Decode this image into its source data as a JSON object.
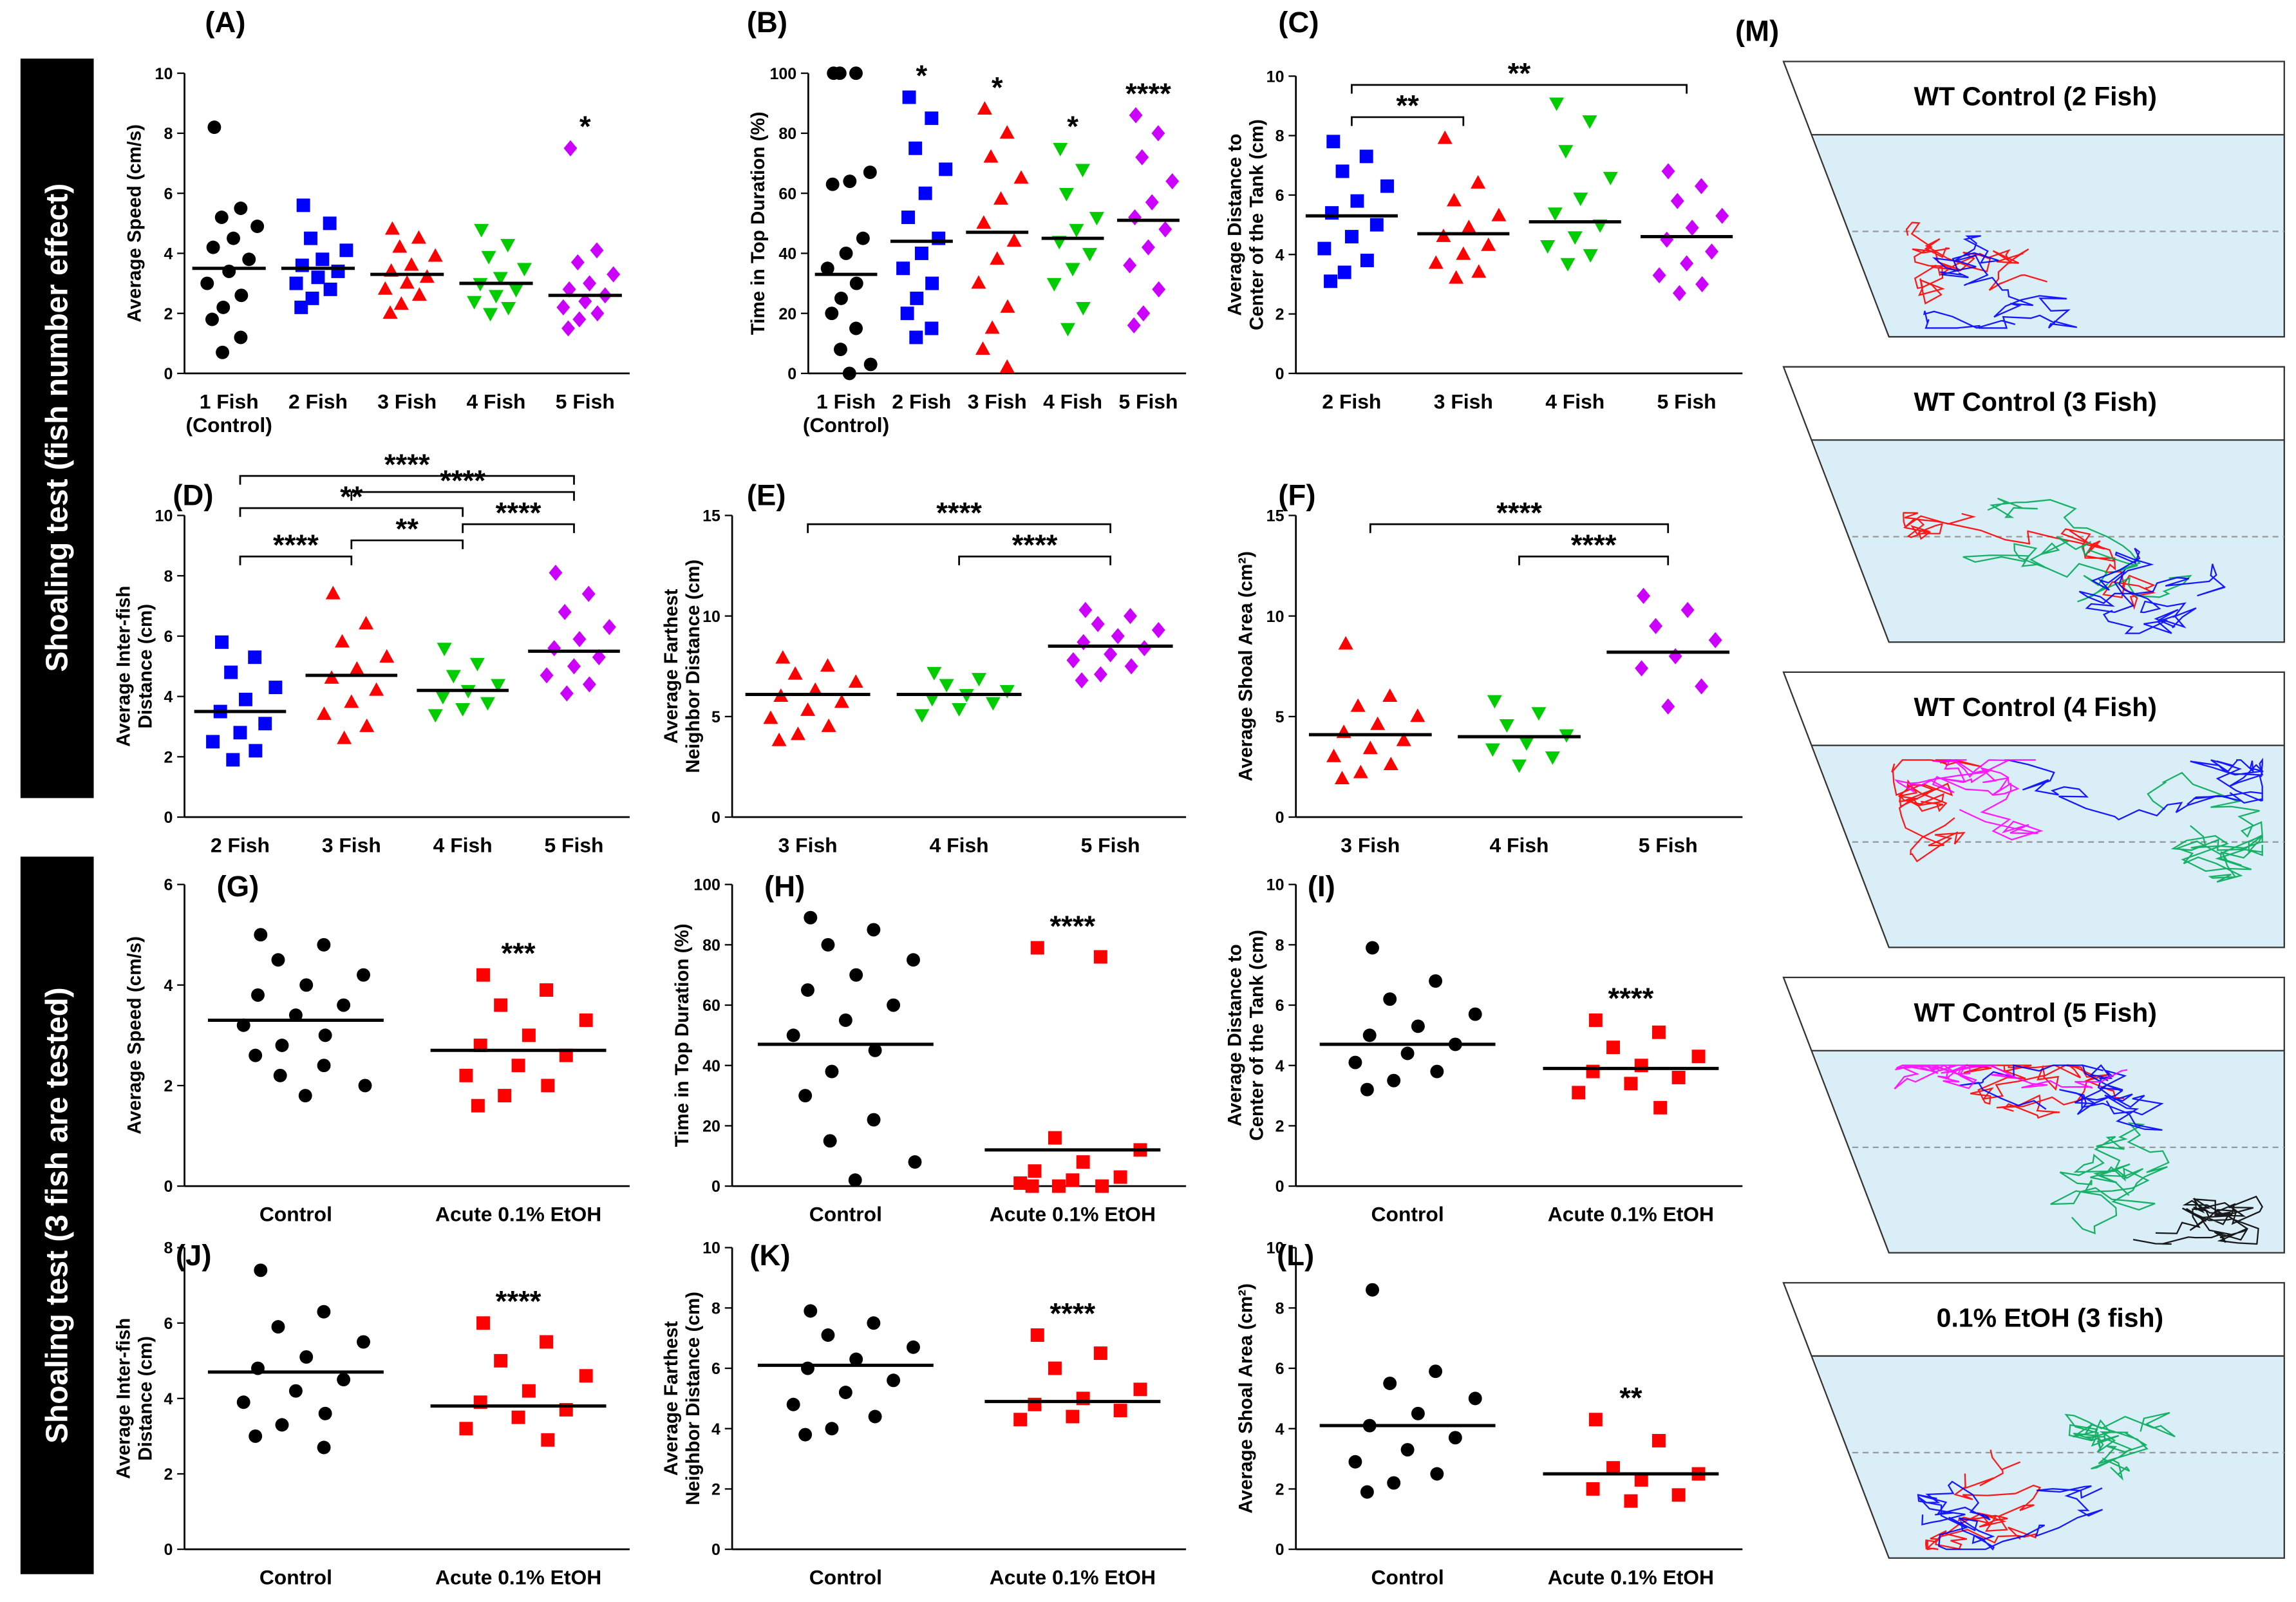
{
  "chart_data": [
    {
      "type": "dotplot",
      "title": "(A)",
      "ylabel": "Average Speed (cm/s)",
      "categories": [
        "1 Fish\n(Control)",
        "2 Fish",
        "3 Fish",
        "4 Fish",
        "5 Fish"
      ],
      "ylim": [
        0,
        10
      ],
      "yticks": [
        0,
        2,
        4,
        6,
        8,
        10
      ],
      "groups": [
        {
          "color": "#000000",
          "marker": "circle",
          "mean": 3.5,
          "values": [
            8.2,
            5.5,
            5.2,
            4.9,
            4.5,
            4.2,
            3.8,
            3.4,
            3.0,
            2.6,
            2.2,
            1.8,
            1.2,
            0.7
          ]
        },
        {
          "color": "#0000ff",
          "marker": "square",
          "mean": 3.5,
          "values": [
            5.6,
            5.0,
            4.5,
            4.1,
            3.8,
            3.6,
            3.4,
            3.2,
            3.0,
            2.8,
            2.5,
            2.2
          ]
        },
        {
          "color": "#ff0000",
          "marker": "triangle",
          "mean": 3.3,
          "values": [
            4.8,
            4.5,
            4.2,
            3.9,
            3.6,
            3.4,
            3.2,
            3.0,
            2.8,
            2.6,
            2.3,
            2.0
          ]
        },
        {
          "color": "#00cc00",
          "marker": "triangle-down",
          "mean": 3.0,
          "values": [
            4.8,
            4.3,
            3.9,
            3.5,
            3.2,
            3.0,
            2.8,
            2.6,
            2.4,
            2.2,
            2.0
          ]
        },
        {
          "color": "#cc00ff",
          "marker": "diamond",
          "mean": 2.6,
          "significance": "*",
          "values": [
            7.5,
            4.1,
            3.7,
            3.3,
            3.0,
            2.8,
            2.6,
            2.4,
            2.2,
            2.0,
            1.8,
            1.5
          ]
        }
      ]
    },
    {
      "type": "dotplot",
      "title": "(B)",
      "ylabel": "Time in Top Duration (%)",
      "categories": [
        "1 Fish\n(Control)",
        "2 Fish",
        "3 Fish",
        "4 Fish",
        "5 Fish"
      ],
      "ylim": [
        0,
        100
      ],
      "yticks": [
        0,
        20,
        40,
        60,
        80,
        100
      ],
      "groups": [
        {
          "color": "#000000",
          "marker": "circle",
          "mean": 33,
          "values": [
            100,
            100,
            100,
            67,
            64,
            63,
            45,
            40,
            35,
            30,
            25,
            20,
            15,
            8,
            3,
            0
          ]
        },
        {
          "color": "#0000ff",
          "marker": "square",
          "mean": 44,
          "significance": "*",
          "values": [
            92,
            85,
            75,
            68,
            60,
            52,
            45,
            40,
            35,
            30,
            25,
            20,
            15,
            12
          ]
        },
        {
          "color": "#ff0000",
          "marker": "triangle",
          "mean": 47,
          "significance": "*",
          "values": [
            88,
            80,
            72,
            65,
            58,
            50,
            44,
            38,
            30,
            22,
            15,
            8,
            2
          ]
        },
        {
          "color": "#00cc00",
          "marker": "triangle-down",
          "mean": 45,
          "significance": "*",
          "values": [
            75,
            68,
            60,
            52,
            48,
            44,
            40,
            35,
            30,
            22,
            15
          ]
        },
        {
          "color": "#cc00ff",
          "marker": "diamond",
          "mean": 51,
          "significance": "****",
          "values": [
            86,
            80,
            72,
            64,
            57,
            52,
            48,
            42,
            36,
            28,
            20,
            16
          ]
        }
      ]
    },
    {
      "type": "dotplot",
      "title": "(C)",
      "ylabel": "Average Distance to\nCenter of the Tank (cm)",
      "categories": [
        "2 Fish",
        "3 Fish",
        "4 Fish",
        "5 Fish"
      ],
      "ylim": [
        0,
        10
      ],
      "yticks": [
        0,
        2,
        4,
        6,
        8,
        10
      ],
      "groups": [
        {
          "color": "#0000ff",
          "marker": "square",
          "mean": 5.3,
          "values": [
            7.8,
            7.3,
            6.8,
            6.3,
            5.8,
            5.4,
            5.0,
            4.6,
            4.2,
            3.8,
            3.4,
            3.1
          ]
        },
        {
          "color": "#ff0000",
          "marker": "triangle",
          "mean": 4.7,
          "values": [
            7.9,
            6.4,
            5.8,
            5.3,
            4.9,
            4.6,
            4.3,
            4.0,
            3.7,
            3.4,
            3.2
          ]
        },
        {
          "color": "#00cc00",
          "marker": "triangle-down",
          "mean": 5.1,
          "values": [
            9.1,
            8.5,
            7.5,
            6.6,
            5.9,
            5.4,
            5.0,
            4.6,
            4.3,
            4.0,
            3.7
          ]
        },
        {
          "color": "#cc00ff",
          "marker": "diamond",
          "mean": 4.6,
          "values": [
            6.8,
            6.3,
            5.8,
            5.3,
            4.9,
            4.5,
            4.1,
            3.7,
            3.3,
            3.0,
            2.7
          ]
        }
      ],
      "brackets": [
        {
          "from": "2 Fish",
          "to": "3 Fish",
          "text": "**"
        },
        {
          "from": "2 Fish",
          "to": "5 Fish",
          "text": "**"
        }
      ]
    },
    {
      "type": "dotplot",
      "title": "(D)",
      "ylabel": "Average Inter-fish\nDistance (cm)",
      "categories": [
        "2 Fish",
        "3 Fish",
        "4 Fish",
        "5 Fish"
      ],
      "ylim": [
        0,
        10
      ],
      "yticks": [
        0,
        2,
        4,
        6,
        8,
        10
      ],
      "groups": [
        {
          "color": "#0000ff",
          "marker": "square",
          "mean": 3.5,
          "values": [
            5.8,
            5.3,
            4.8,
            4.3,
            3.9,
            3.5,
            3.1,
            2.8,
            2.5,
            2.2,
            1.9
          ]
        },
        {
          "color": "#ff0000",
          "marker": "triangle",
          "mean": 4.7,
          "values": [
            7.4,
            6.4,
            5.8,
            5.3,
            4.9,
            4.6,
            4.2,
            3.8,
            3.4,
            3.0,
            2.6
          ]
        },
        {
          "color": "#00cc00",
          "marker": "triangle-down",
          "mean": 4.2,
          "values": [
            5.6,
            5.1,
            4.7,
            4.4,
            4.2,
            4.0,
            3.8,
            3.6,
            3.4
          ]
        },
        {
          "color": "#cc00ff",
          "marker": "diamond",
          "mean": 5.5,
          "values": [
            8.1,
            7.4,
            6.8,
            6.3,
            5.9,
            5.6,
            5.3,
            5.0,
            4.7,
            4.4,
            4.1
          ]
        }
      ],
      "brackets": [
        {
          "from": "2 Fish",
          "to": "3 Fish",
          "text": "****"
        },
        {
          "from": "3 Fish",
          "to": "4 Fish",
          "text": "**"
        },
        {
          "from": "4 Fish",
          "to": "5 Fish",
          "text": "****"
        },
        {
          "from": "2 Fish",
          "to": "4 Fish",
          "text": "**"
        },
        {
          "from": "3 Fish",
          "to": "5 Fish",
          "text": "****"
        },
        {
          "from": "2 Fish",
          "to": "5 Fish",
          "text": "****"
        }
      ]
    },
    {
      "type": "dotplot",
      "title": "(E)",
      "ylabel": "Average Farthest\nNeighbor Distance (cm)",
      "categories": [
        "3 Fish",
        "4 Fish",
        "5 Fish"
      ],
      "ylim": [
        0,
        15
      ],
      "yticks": [
        0,
        5,
        10,
        15
      ],
      "groups": [
        {
          "color": "#ff0000",
          "marker": "triangle",
          "mean": 6.1,
          "values": [
            7.9,
            7.5,
            7.1,
            6.7,
            6.3,
            6.0,
            5.7,
            5.3,
            4.9,
            4.5,
            4.1,
            3.8
          ]
        },
        {
          "color": "#00cc00",
          "marker": "triangle-down",
          "mean": 6.1,
          "values": [
            7.2,
            6.9,
            6.6,
            6.3,
            6.1,
            5.9,
            5.7,
            5.4,
            5.1
          ]
        },
        {
          "color": "#cc00ff",
          "marker": "diamond",
          "mean": 8.5,
          "values": [
            10.3,
            10.0,
            9.6,
            9.3,
            9.0,
            8.7,
            8.4,
            8.1,
            7.8,
            7.5,
            7.1,
            6.8
          ]
        }
      ],
      "brackets": [
        {
          "from": "4 Fish",
          "to": "5 Fish",
          "text": "****"
        },
        {
          "from": "3 Fish",
          "to": "5 Fish",
          "text": "****"
        }
      ]
    },
    {
      "type": "dotplot",
      "title": "(F)",
      "ylabel": "Average Shoal Area (cm²)",
      "categories": [
        "3 Fish",
        "4 Fish",
        "5 Fish"
      ],
      "ylim": [
        0,
        15
      ],
      "yticks": [
        0,
        5,
        10,
        15
      ],
      "groups": [
        {
          "color": "#ff0000",
          "marker": "triangle",
          "mean": 4.1,
          "values": [
            8.6,
            6.0,
            5.5,
            5.0,
            4.6,
            4.2,
            3.8,
            3.4,
            3.0,
            2.6,
            2.2,
            1.9
          ]
        },
        {
          "color": "#00cc00",
          "marker": "triangle-down",
          "mean": 4.0,
          "values": [
            5.8,
            5.2,
            4.6,
            4.1,
            3.7,
            3.4,
            3.0,
            2.6
          ]
        },
        {
          "color": "#cc00ff",
          "marker": "diamond",
          "mean": 8.2,
          "values": [
            11.0,
            10.3,
            9.5,
            8.8,
            8.0,
            7.4,
            6.5,
            5.5
          ]
        }
      ],
      "brackets": [
        {
          "from": "4 Fish",
          "to": "5 Fish",
          "text": "****"
        },
        {
          "from": "3 Fish",
          "to": "5 Fish",
          "text": "****"
        }
      ]
    },
    {
      "type": "dotplot",
      "title": "(G)",
      "ylabel": "Average Speed (cm/s)",
      "categories": [
        "Control",
        "Acute 0.1% EtOH"
      ],
      "ylim": [
        0,
        6
      ],
      "yticks": [
        0,
        2,
        4,
        6
      ],
      "groups": [
        {
          "color": "#000000",
          "marker": "circle",
          "mean": 3.3,
          "values": [
            5.0,
            4.8,
            4.5,
            4.2,
            4.0,
            3.8,
            3.6,
            3.4,
            3.2,
            3.0,
            2.8,
            2.6,
            2.4,
            2.2,
            2.0,
            1.8
          ]
        },
        {
          "color": "#ff0000",
          "marker": "square",
          "mean": 2.7,
          "significance": "***",
          "values": [
            4.2,
            3.9,
            3.6,
            3.3,
            3.0,
            2.8,
            2.6,
            2.4,
            2.2,
            2.0,
            1.8,
            1.6
          ]
        }
      ]
    },
    {
      "type": "dotplot",
      "title": "(H)",
      "ylabel": "Time in Top Duration (%)",
      "categories": [
        "Control",
        "Acute 0.1% EtOH"
      ],
      "ylim": [
        0,
        100
      ],
      "yticks": [
        0,
        20,
        40,
        60,
        80,
        100
      ],
      "groups": [
        {
          "color": "#000000",
          "marker": "circle",
          "mean": 47,
          "values": [
            89,
            85,
            80,
            75,
            70,
            65,
            60,
            55,
            50,
            45,
            38,
            30,
            22,
            15,
            8,
            2
          ]
        },
        {
          "color": "#ff0000",
          "marker": "square",
          "mean": 12,
          "significance": "****",
          "values": [
            79,
            76,
            16,
            12,
            8,
            5,
            3,
            2,
            1,
            0,
            0,
            0
          ]
        }
      ]
    },
    {
      "type": "dotplot",
      "title": "(I)",
      "ylabel": "Average Distance to\nCenter of the Tank (cm)",
      "categories": [
        "Control",
        "Acute 0.1% EtOH"
      ],
      "ylim": [
        0,
        10
      ],
      "yticks": [
        0,
        2,
        4,
        6,
        8,
        10
      ],
      "groups": [
        {
          "color": "#000000",
          "marker": "circle",
          "mean": 4.7,
          "values": [
            7.9,
            6.8,
            6.2,
            5.7,
            5.3,
            5.0,
            4.7,
            4.4,
            4.1,
            3.8,
            3.5,
            3.2
          ]
        },
        {
          "color": "#ff0000",
          "marker": "square",
          "mean": 3.9,
          "significance": "****",
          "values": [
            5.5,
            5.1,
            4.6,
            4.3,
            4.0,
            3.8,
            3.6,
            3.4,
            3.1,
            2.6
          ]
        }
      ]
    },
    {
      "type": "dotplot",
      "title": "(J)",
      "ylabel": "Average Inter-fish\nDistance (cm)",
      "categories": [
        "Control",
        "Acute 0.1% EtOH"
      ],
      "ylim": [
        0,
        8
      ],
      "yticks": [
        0,
        2,
        4,
        6,
        8
      ],
      "groups": [
        {
          "color": "#000000",
          "marker": "circle",
          "mean": 4.7,
          "values": [
            7.4,
            6.3,
            5.9,
            5.5,
            5.1,
            4.8,
            4.5,
            4.2,
            3.9,
            3.6,
            3.3,
            3.0,
            2.7
          ]
        },
        {
          "color": "#ff0000",
          "marker": "square",
          "mean": 3.8,
          "significance": "****",
          "values": [
            6.0,
            5.5,
            5.0,
            4.6,
            4.2,
            3.9,
            3.7,
            3.5,
            3.2,
            2.9
          ]
        }
      ]
    },
    {
      "type": "dotplot",
      "title": "(K)",
      "ylabel": "Average Farthest\nNeighbor Distance (cm)",
      "categories": [
        "Control",
        "Acute 0.1% EtOH"
      ],
      "ylim": [
        0,
        10
      ],
      "yticks": [
        0,
        2,
        4,
        6,
        8,
        10
      ],
      "groups": [
        {
          "color": "#000000",
          "marker": "circle",
          "mean": 6.1,
          "values": [
            7.9,
            7.5,
            7.1,
            6.7,
            6.3,
            6.0,
            5.6,
            5.2,
            4.8,
            4.4,
            4.0,
            3.8
          ]
        },
        {
          "color": "#ff0000",
          "marker": "square",
          "mean": 4.9,
          "significance": "****",
          "values": [
            7.1,
            6.5,
            6.0,
            5.3,
            5.0,
            4.8,
            4.6,
            4.4,
            4.3
          ]
        }
      ]
    },
    {
      "type": "dotplot",
      "title": "(L)",
      "ylabel": "Average Shoal Area (cm²)",
      "categories": [
        "Control",
        "Acute 0.1% EtOH"
      ],
      "ylim": [
        0,
        10
      ],
      "yticks": [
        0,
        2,
        4,
        6,
        8,
        10
      ],
      "groups": [
        {
          "color": "#000000",
          "marker": "circle",
          "mean": 4.1,
          "values": [
            8.6,
            5.9,
            5.5,
            5.0,
            4.5,
            4.1,
            3.7,
            3.3,
            2.9,
            2.5,
            2.2,
            1.9
          ]
        },
        {
          "color": "#ff0000",
          "marker": "square",
          "mean": 2.5,
          "significance": "**",
          "values": [
            4.3,
            3.6,
            2.7,
            2.5,
            2.3,
            2.0,
            1.8,
            1.6
          ]
        }
      ]
    }
  ],
  "panel_m": {
    "title": "(M)",
    "tanks": [
      {
        "title": "WT Control (2 Fish)",
        "track_colors": [
          "#ff0000",
          "#0000ff"
        ]
      },
      {
        "title": "WT Control (3 Fish)",
        "track_colors": [
          "#ff0000",
          "#00aa55",
          "#0000ff"
        ]
      },
      {
        "title": "WT Control (4 Fish)",
        "track_colors": [
          "#ff0000",
          "#00aa55",
          "#0000ff",
          "#ff00ff"
        ]
      },
      {
        "title": "WT Control (5 Fish)",
        "track_colors": [
          "#ff0000",
          "#00aa55",
          "#0000ff",
          "#ff00ff",
          "#000000"
        ]
      },
      {
        "title": "0.1% EtOH (3 fish)",
        "track_colors": [
          "#ff0000",
          "#00aa55",
          "#0000ff"
        ]
      }
    ]
  },
  "side_labels": [
    "Shoaling test (fish number effect)",
    "Shoaling test (3 fish are tested)"
  ]
}
